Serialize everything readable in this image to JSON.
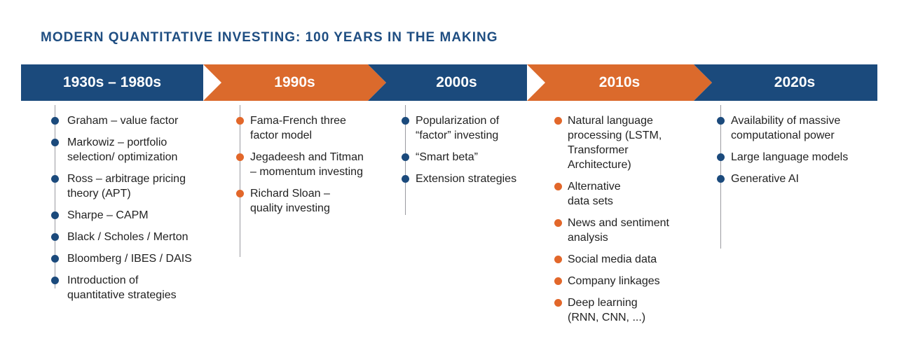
{
  "title": "MODERN QUANTITATIVE INVESTING: 100 YEARS IN THE MAKING",
  "colors": {
    "navy": "#1b4a7c",
    "orange": "#db6a2c",
    "title": "#1f4e82",
    "line": "#9a9aa0"
  },
  "eras": [
    {
      "label": "1930s – 1980s",
      "color": "navy",
      "items": [
        "Graham – value factor",
        "Markowiz – portfolio selection/ optimization",
        "Ross – arbitrage pricing theory (APT)",
        "Sharpe – CAPM",
        "Black / Scholes / Merton",
        "Bloomberg / IBES / DAIS",
        "Introduction of quantitative strategies"
      ]
    },
    {
      "label": "1990s",
      "color": "orange",
      "items": [
        "Fama-French three factor model",
        "Jegadeesh and Titman – momentum investing",
        "Richard Sloan – quality investing"
      ]
    },
    {
      "label": "2000s",
      "color": "navy",
      "items": [
        "Popularization of “factor” investing",
        "“Smart beta”",
        "Extension strategies"
      ]
    },
    {
      "label": "2010s",
      "color": "orange",
      "items": [
        "Natural language processing (LSTM, Transformer Architecture)",
        "Alternative data sets",
        "News and sentiment analysis",
        "Social media data",
        "Company linkages",
        "Deep learning (RNN, CNN, ...)"
      ]
    },
    {
      "label": "2020s",
      "color": "navy",
      "items": [
        "Availability of massive computational power",
        "Large language models",
        "Generative AI"
      ]
    }
  ]
}
